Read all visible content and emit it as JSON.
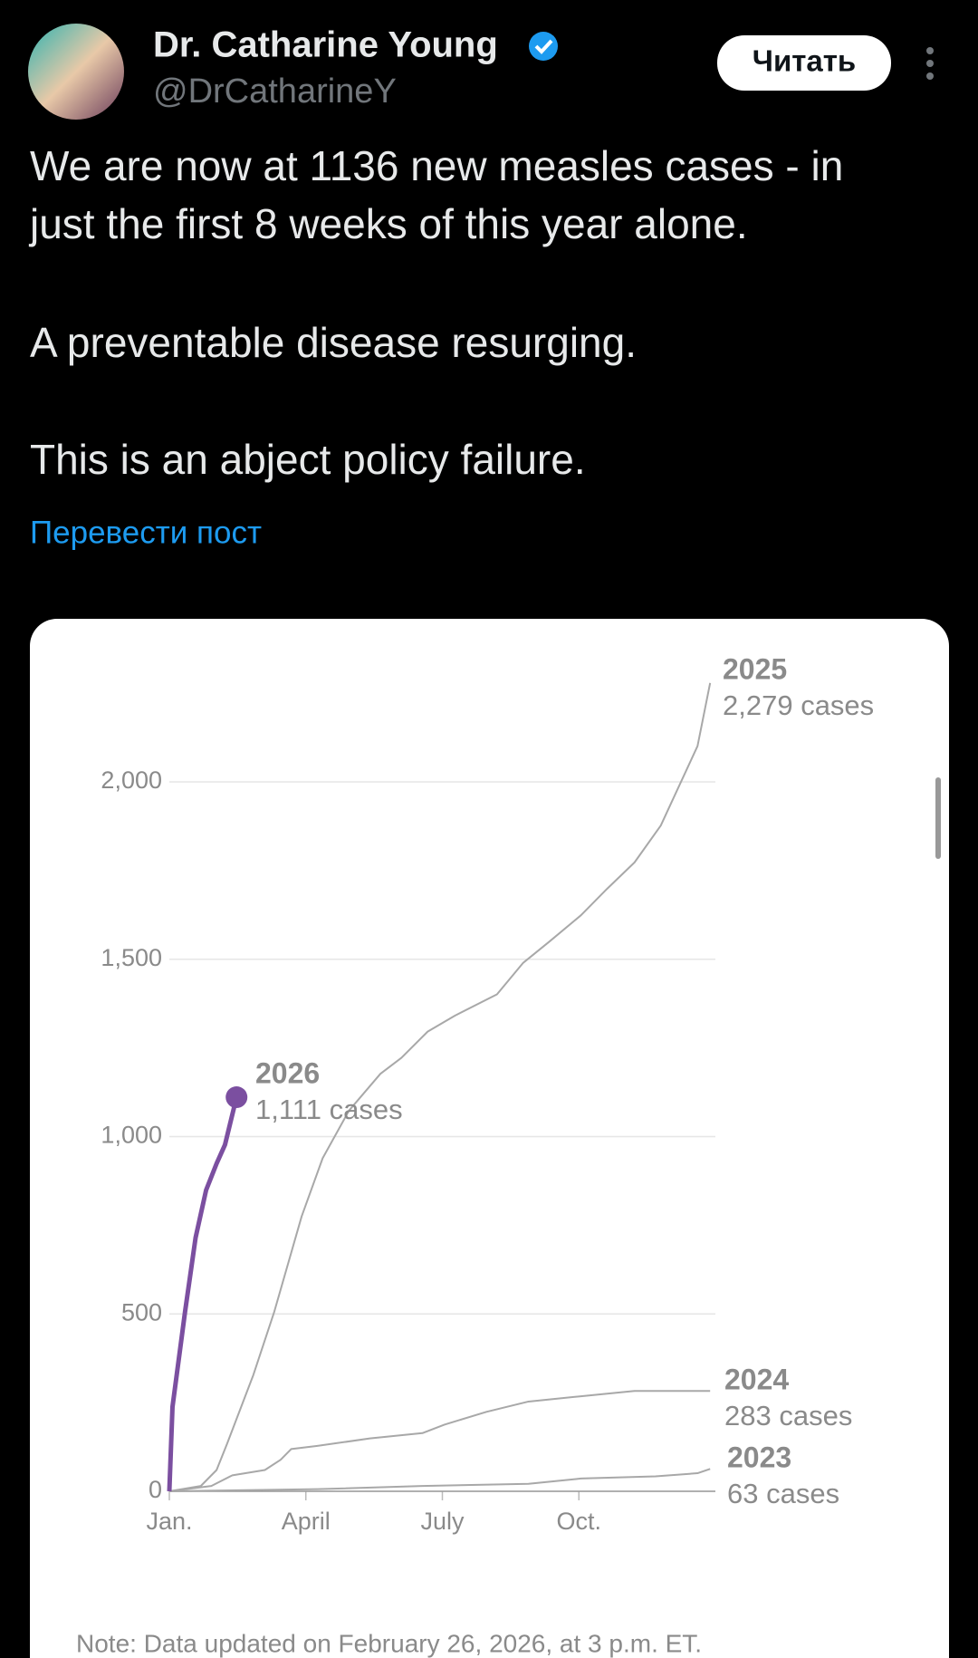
{
  "tweet": {
    "author": "Dr. Catharine Young",
    "handle": "@DrCatharineY",
    "follow_button": "Читать",
    "lines": [
      "We are now at 1136 new measles cases - in",
      "just the first 8 weeks of this year alone.",
      "A preventable disease resurging.",
      "This is an abject policy failure."
    ],
    "translate": "Перевести пост"
  },
  "chart_data": {
    "type": "line",
    "note": "Note: Data updated on February 26, 2026, at 3 p.m. ET.",
    "xlim": [
      0,
      52
    ],
    "xticks": [
      {
        "value": 0,
        "label": "Jan."
      },
      {
        "value": 13,
        "label": "April"
      },
      {
        "value": 26,
        "label": "July"
      },
      {
        "value": 39,
        "label": "Oct."
      }
    ],
    "ylim": [
      0,
      2000
    ],
    "yticks": [
      {
        "value": 0,
        "label": "0"
      },
      {
        "value": 500,
        "label": "500"
      },
      {
        "value": 1000,
        "label": "1,000"
      },
      {
        "value": 1500,
        "label": "1,500"
      },
      {
        "value": 2000,
        "label": "2,000"
      }
    ],
    "grid": true,
    "series": [
      {
        "name": "2023",
        "color": "#a8a8a8",
        "end_label": "63 cases",
        "x": [
          0,
          14.1,
          24.1,
          34.2,
          39.2,
          46.3,
          50.3,
          51.5
        ],
        "values": [
          0,
          6,
          15,
          21,
          36,
          42,
          51,
          63
        ]
      },
      {
        "name": "2024",
        "color": "#a8a8a8",
        "end_label": "283 cases",
        "x": [
          0,
          4,
          6,
          9.1,
          10.6,
          11.6,
          14.1,
          19.1,
          24.1,
          26.2,
          30.2,
          34.2,
          39.2,
          44.3,
          51.5
        ],
        "values": [
          0,
          15,
          45,
          60,
          89,
          119,
          128,
          149,
          164,
          188,
          224,
          253,
          268,
          283,
          283
        ]
      },
      {
        "name": "2025",
        "color": "#a8a8a8",
        "end_label": "2,279 cases",
        "x": [
          0,
          3,
          4.5,
          5.5,
          8,
          10,
          12.6,
          14.6,
          17.1,
          20.1,
          22.1,
          24.6,
          27.2,
          31.2,
          33.7,
          36.2,
          39.2,
          41.7,
          44.3,
          46.8,
          50.3,
          51.5
        ],
        "values": [
          0,
          15,
          60,
          134,
          328,
          507,
          775,
          939,
          1073,
          1177,
          1222,
          1296,
          1341,
          1401,
          1490,
          1550,
          1624,
          1699,
          1773,
          1877,
          2101,
          2279
        ]
      },
      {
        "name": "2026",
        "color": "#7b4fa0",
        "end_label": "1,111 cases",
        "x": [
          0,
          0.3,
          1.5,
          2.5,
          3.5,
          4.5,
          5.3,
          6.4
        ],
        "values": [
          0,
          238,
          507,
          715,
          849,
          924,
          977,
          1111
        ]
      }
    ]
  }
}
